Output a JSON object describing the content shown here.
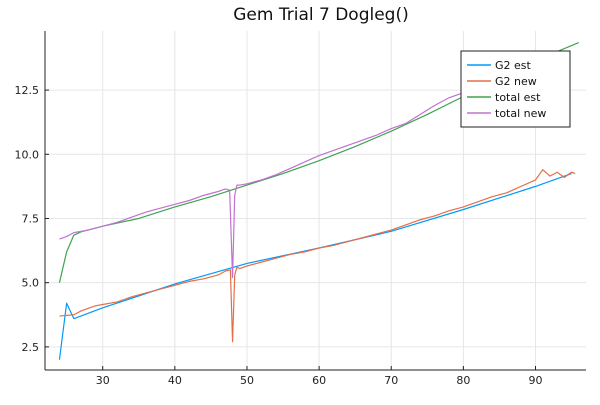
{
  "chart_data": {
    "type": "line",
    "title": "Gem Trial 7 Dogleg()",
    "xlabel": "",
    "ylabel": "",
    "xlim": [
      22,
      97
    ],
    "ylim": [
      1.6,
      14.8
    ],
    "grid": true,
    "legend_position": "top-right",
    "x_ticks": [
      30,
      40,
      50,
      60,
      70,
      80,
      90
    ],
    "y_ticks": [
      2.5,
      5.0,
      7.5,
      10.0,
      12.5
    ],
    "x_tick_labels": [
      "30",
      "40",
      "50",
      "60",
      "70",
      "80",
      "90"
    ],
    "y_tick_labels": [
      "2.5",
      "5.0",
      "7.5",
      "10.0",
      "12.5"
    ],
    "series": [
      {
        "name": "G2 est",
        "color": "#009AFA",
        "x": [
          24,
          25,
          26,
          30,
          40,
          50,
          60,
          70,
          80,
          90,
          95
        ],
        "y": [
          2.0,
          4.2,
          3.6,
          4.02,
          4.95,
          5.75,
          6.35,
          7.0,
          7.85,
          8.75,
          9.25
        ]
      },
      {
        "name": "G2 new",
        "color": "#E36F47",
        "x": [
          24,
          26,
          27,
          28,
          29,
          30,
          32,
          34,
          36,
          38,
          40,
          42,
          44,
          46,
          47,
          47.7,
          48.0,
          48.3,
          48.6,
          49,
          50,
          52,
          54,
          56,
          58,
          60,
          62,
          64,
          66,
          68,
          70,
          72,
          74,
          76,
          78,
          80,
          82,
          84,
          86,
          88,
          90,
          91,
          92,
          93,
          94,
          95,
          95.5
        ],
        "y": [
          3.7,
          3.75,
          3.9,
          4.0,
          4.1,
          4.15,
          4.25,
          4.45,
          4.6,
          4.75,
          4.9,
          5.05,
          5.15,
          5.3,
          5.45,
          5.5,
          2.7,
          5.3,
          5.6,
          5.55,
          5.65,
          5.8,
          5.95,
          6.1,
          6.2,
          6.35,
          6.45,
          6.6,
          6.75,
          6.9,
          7.05,
          7.25,
          7.45,
          7.6,
          7.8,
          7.95,
          8.15,
          8.35,
          8.5,
          8.75,
          9.0,
          9.4,
          9.15,
          9.3,
          9.1,
          9.3,
          9.25
        ]
      },
      {
        "name": "total est",
        "color": "#3EA44E",
        "x": [
          24,
          25,
          26,
          27,
          30,
          35,
          40,
          45,
          50,
          55,
          60,
          65,
          70,
          75,
          80,
          85,
          90,
          93,
          96
        ],
        "y": [
          5.0,
          6.2,
          6.85,
          6.98,
          7.2,
          7.5,
          7.95,
          8.35,
          8.8,
          9.25,
          9.75,
          10.3,
          10.9,
          11.55,
          12.25,
          12.95,
          13.65,
          14.0,
          14.35
        ]
      },
      {
        "name": "total new",
        "color": "#C271D2",
        "x": [
          24,
          25,
          26,
          27,
          28,
          30,
          32,
          34,
          36,
          38,
          40,
          42,
          44,
          46,
          47,
          47.6,
          48.0,
          48.3,
          48.6,
          49,
          50,
          52,
          54,
          56,
          58,
          60,
          62,
          64,
          66,
          68,
          70,
          72,
          74,
          76,
          78,
          80
        ],
        "y": [
          6.7,
          6.8,
          6.95,
          7.0,
          7.05,
          7.2,
          7.35,
          7.55,
          7.75,
          7.9,
          8.05,
          8.2,
          8.4,
          8.55,
          8.65,
          8.6,
          5.2,
          8.4,
          8.8,
          8.8,
          8.85,
          9.0,
          9.2,
          9.45,
          9.7,
          9.95,
          10.15,
          10.35,
          10.55,
          10.75,
          11.0,
          11.2,
          11.55,
          11.9,
          12.2,
          12.4
        ]
      }
    ]
  }
}
